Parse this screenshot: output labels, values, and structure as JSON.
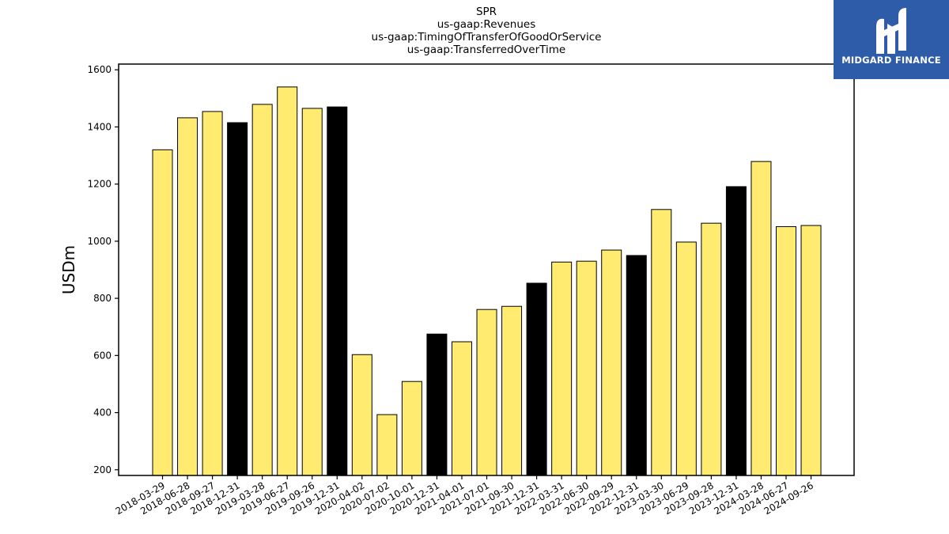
{
  "chart_data": {
    "type": "bar",
    "title_lines": [
      "SPR",
      "us-gaap:Revenues",
      "us-gaap:TimingOfTransferOfGoodOrService",
      "us-gaap:TransferredOverTime"
    ],
    "ylabel": "USDm",
    "xlabel": "",
    "ylim": [
      180,
      1620
    ],
    "yticks": [
      200,
      400,
      600,
      800,
      1000,
      1200,
      1400,
      1600
    ],
    "grid": false,
    "colors": {
      "quarter": "#ffeb70",
      "year_end": "#000000",
      "edge": "#000000"
    },
    "categories": [
      "2018-03-29",
      "2018-06-28",
      "2018-09-27",
      "2018-12-31",
      "2019-03-28",
      "2019-06-27",
      "2019-09-26",
      "2019-12-31",
      "2020-04-02",
      "2020-07-02",
      "2020-10-01",
      "2020-12-31",
      "2021-04-01",
      "2021-07-01",
      "2021-09-30",
      "2021-12-31",
      "2022-03-31",
      "2022-06-30",
      "2022-09-29",
      "2022-12-31",
      "2023-03-30",
      "2023-06-29",
      "2023-09-28",
      "2023-12-31",
      "2024-03-28",
      "2024-06-27",
      "2024-09-26"
    ],
    "values": [
      1320,
      1432,
      1454,
      1415,
      1479,
      1540,
      1465,
      1470,
      603,
      393,
      509,
      675,
      648,
      761,
      772,
      853,
      927,
      930,
      969,
      950,
      1111,
      997,
      1063,
      1191,
      1279,
      1051,
      1055
    ],
    "year_end": [
      false,
      false,
      false,
      true,
      false,
      false,
      false,
      true,
      false,
      false,
      false,
      true,
      false,
      false,
      false,
      true,
      false,
      false,
      false,
      true,
      false,
      false,
      false,
      true,
      false,
      false,
      false
    ]
  },
  "logo": {
    "text": "MIDGARD FINANCE",
    "background": "#2f5ca8"
  }
}
